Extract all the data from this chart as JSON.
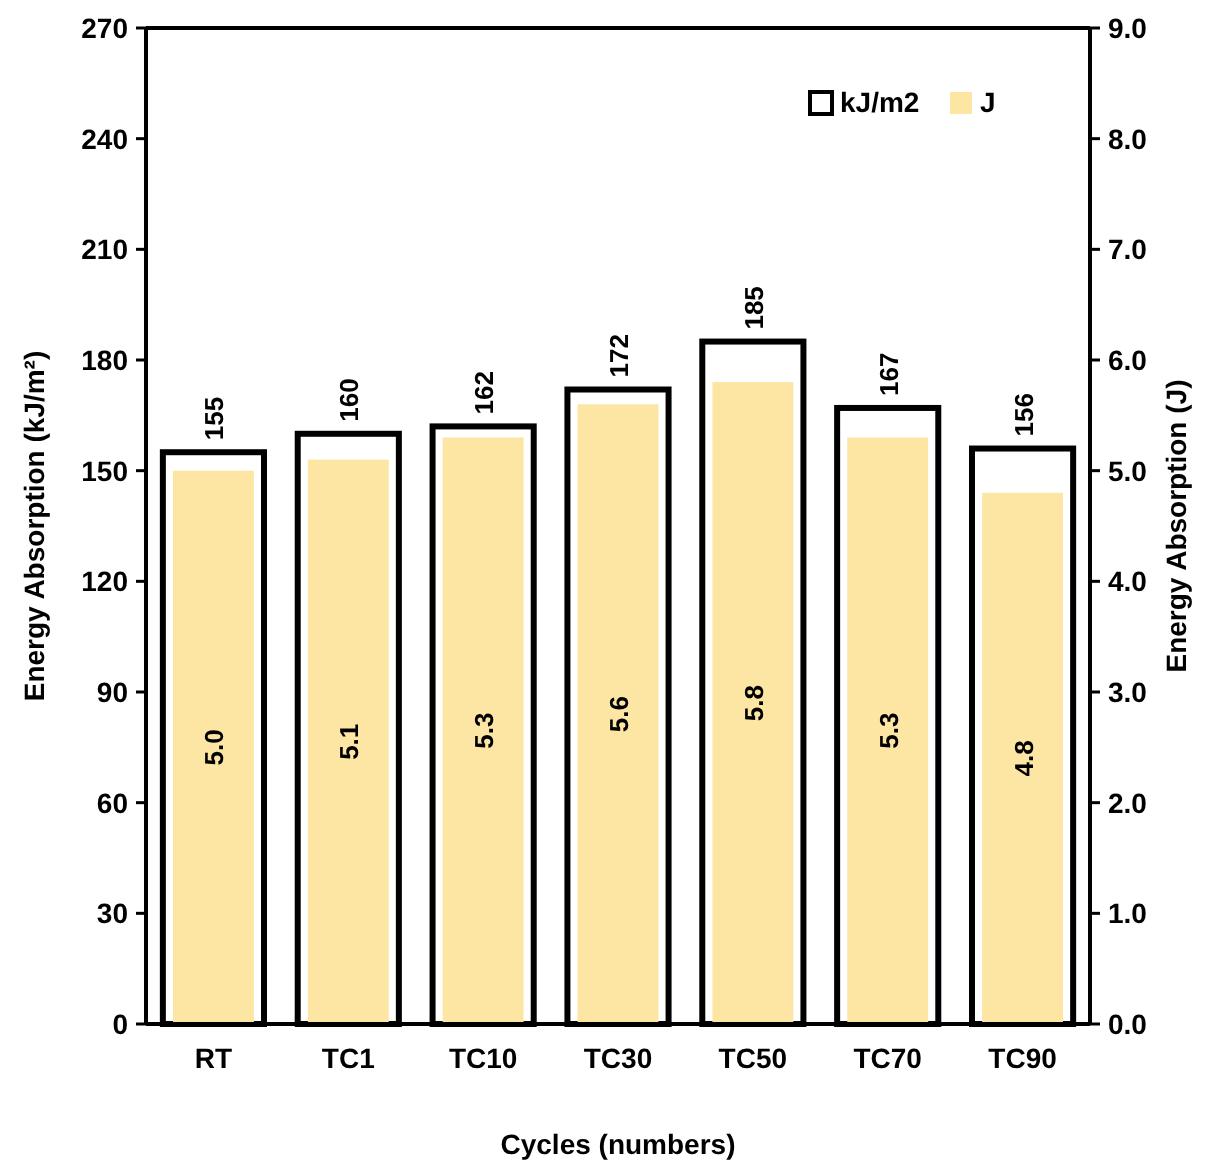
{
  "chart_data": {
    "type": "bar",
    "xlabel": "Cycles (numbers)",
    "ylabel": "Energy Absorption (kJ/m²)",
    "y2label": "Energy Absorption (J)",
    "categories": [
      "RT",
      "TC1",
      "TC10",
      "TC30",
      "TC50",
      "TC70",
      "TC90"
    ],
    "series": [
      {
        "name": "kJ/m2",
        "color": "#ffffff",
        "values": [
          155,
          160,
          162,
          172,
          185,
          167,
          156
        ]
      },
      {
        "name": "J",
        "color": "#fde6a4",
        "axis": "y2",
        "values": [
          5.0,
          5.1,
          5.3,
          5.6,
          5.8,
          5.3,
          4.8
        ],
        "value_labels": [
          "5.0",
          "5.1",
          "5.3",
          "5.6",
          "5.8",
          "5.3",
          "4.8"
        ]
      }
    ],
    "ylim": [
      0,
      270
    ],
    "yticks": [
      0,
      30,
      60,
      90,
      120,
      150,
      180,
      210,
      240,
      270
    ],
    "y2lim": [
      0,
      9
    ],
    "y2ticks": [
      {
        "value": 0,
        "label": "0.0"
      },
      {
        "value": 1,
        "label": "1.0"
      },
      {
        "value": 2,
        "label": "2.0"
      },
      {
        "value": 3,
        "label": "3.0"
      },
      {
        "value": 4,
        "label": "4.0"
      },
      {
        "value": 5,
        "label": "5.0"
      },
      {
        "value": 6,
        "label": "6.0"
      },
      {
        "value": 7,
        "label": "7.0"
      },
      {
        "value": 8,
        "label": "8.0"
      },
      {
        "value": 9,
        "label": "9.0"
      }
    ],
    "data_labels": true,
    "legend": "top right",
    "grid": false
  }
}
